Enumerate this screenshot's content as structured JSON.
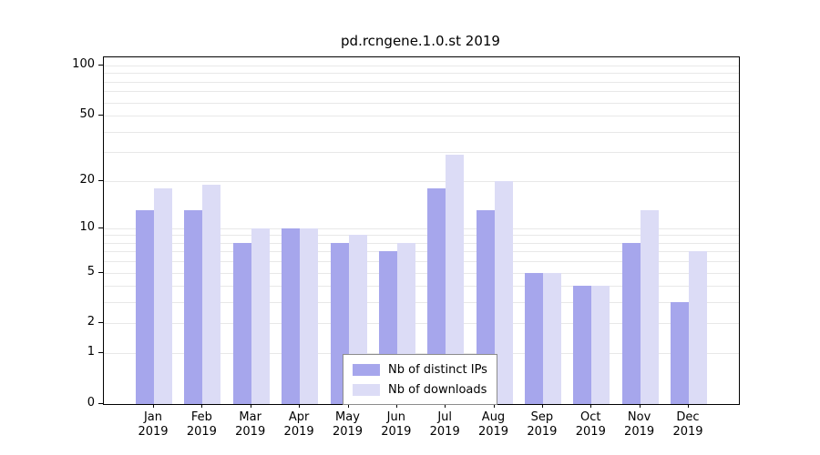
{
  "chart_data": {
    "type": "bar",
    "title": "pd.rcngene.1.0.st 2019",
    "categories": [
      "Jan",
      "Feb",
      "Mar",
      "Apr",
      "May",
      "Jun",
      "Jul",
      "Aug",
      "Sep",
      "Oct",
      "Nov",
      "Dec"
    ],
    "year_label": "2019",
    "series": [
      {
        "name": "Nb of distinct IPs",
        "color": "#a6a6ec",
        "values": [
          13,
          13,
          8,
          10,
          8,
          7,
          18,
          13,
          5,
          4,
          8,
          3
        ]
      },
      {
        "name": "Nb of downloads",
        "color": "#dcdcf6",
        "values": [
          18,
          19,
          10,
          10,
          9,
          8,
          29,
          20,
          5,
          4,
          13,
          7
        ]
      }
    ],
    "y_ticks": [
      0,
      1,
      2,
      5,
      10,
      20,
      50,
      100
    ],
    "grid_values": [
      1,
      2,
      3,
      4,
      5,
      6,
      7,
      8,
      9,
      10,
      20,
      30,
      40,
      50,
      60,
      70,
      80,
      90,
      100
    ],
    "y_scale": "log2(value+1)",
    "ylim": [
      0,
      112
    ],
    "grid": true,
    "legend_position": "bottom-center",
    "colors": {
      "axis": "#000000",
      "gridline": "#e8e8e8",
      "legend_border": "#8c8c8c",
      "background": "#ffffff"
    }
  }
}
